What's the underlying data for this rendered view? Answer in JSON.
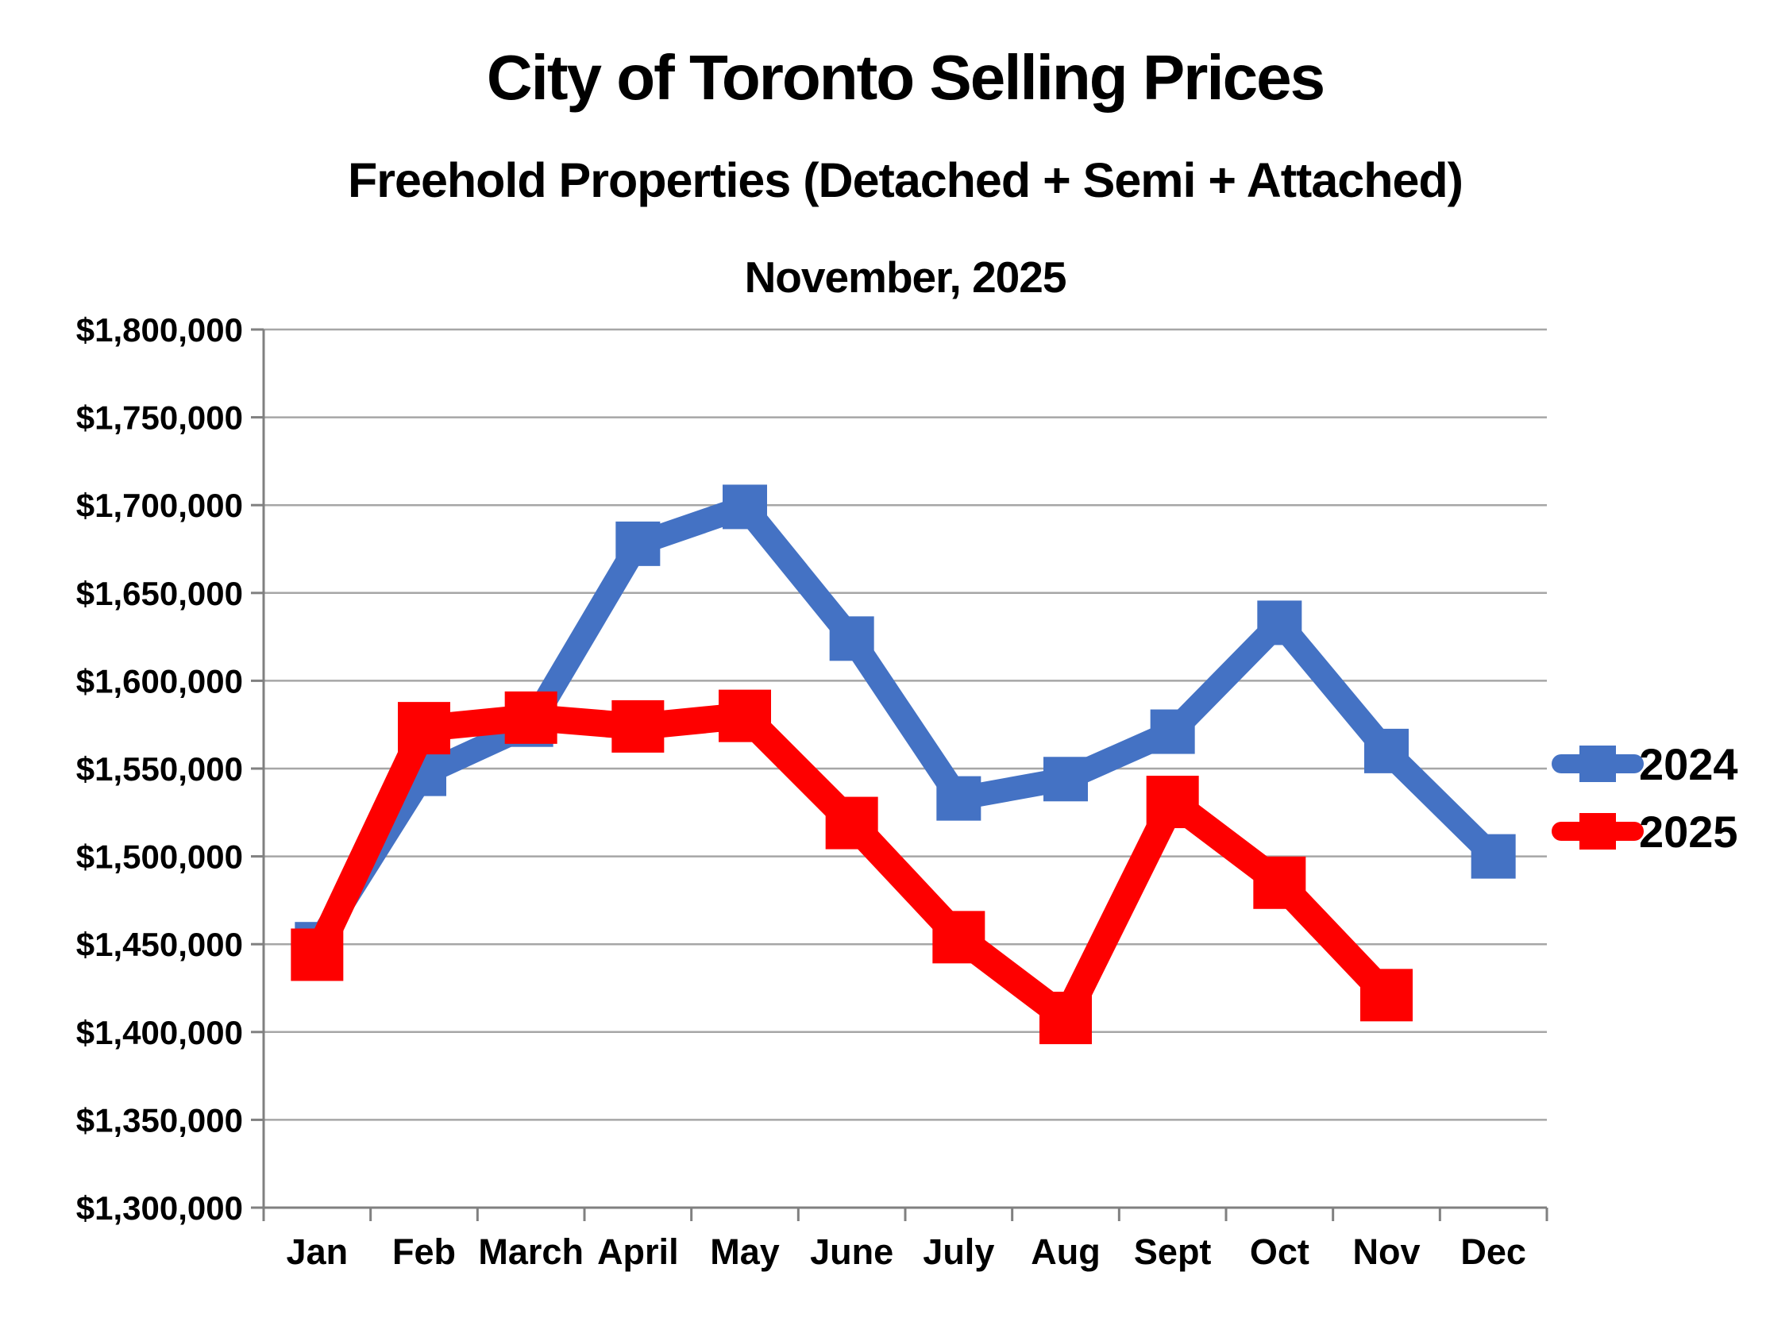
{
  "titles": {
    "main": "City of Toronto Selling Prices",
    "subtitle": "Freehold Properties (Detached + Semi + Attached)",
    "date_line": "November, 2025"
  },
  "chart_data": {
    "type": "line",
    "title": "City of Toronto Selling Prices",
    "subtitle": "Freehold Properties (Detached + Semi + Attached)",
    "as_of": "November, 2025",
    "categories": [
      "Jan",
      "Feb",
      "March",
      "April",
      "May",
      "June",
      "July",
      "Aug",
      "Sept",
      "Oct",
      "Nov",
      "Dec"
    ],
    "series": [
      {
        "name": "2024",
        "color": "#4472C4",
        "values": [
          1450000,
          1547000,
          1575000,
          1678000,
          1699000,
          1624000,
          1533000,
          1544000,
          1571000,
          1633000,
          1560000,
          1500000
        ]
      },
      {
        "name": "2025",
        "color": "#FE0000",
        "values": [
          1444000,
          1573000,
          1579000,
          1574000,
          1580000,
          1519000,
          1454000,
          1408000,
          1531000,
          1485000,
          1421000,
          null
        ]
      }
    ],
    "y_axis": {
      "min": 1300000,
      "max": 1800000,
      "step": 50000,
      "tick_labels": [
        "$1,300,000",
        "$1,350,000",
        "$1,400,000",
        "$1,450,000",
        "$1,500,000",
        "$1,550,000",
        "$1,600,000",
        "$1,650,000",
        "$1,700,000",
        "$1,750,000",
        "$1,800,000"
      ]
    },
    "grid": true,
    "legend_position": "right",
    "marker": "square"
  },
  "colors": {
    "background": "#FFFFFF",
    "gridline": "#A6A6A6",
    "axis": "#808080",
    "text": "#000000",
    "series_2024": "#4472C4",
    "series_2025": "#FE0000"
  }
}
